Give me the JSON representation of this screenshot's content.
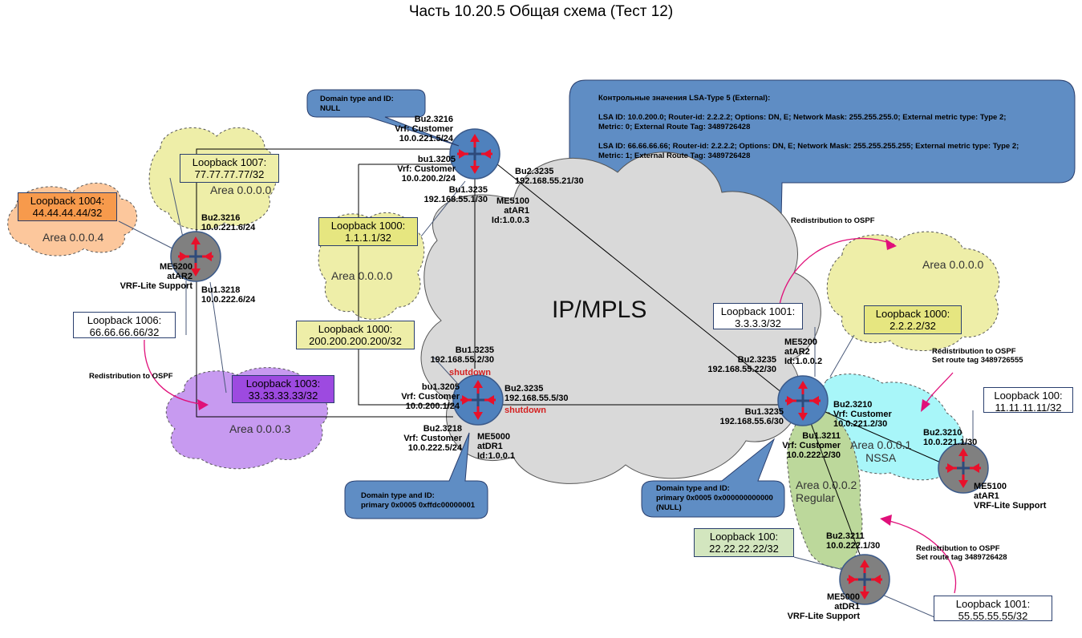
{
  "title": "Часть 10.20.5 Общая схема (Тест 12)",
  "core_label": "IP/MPLS",
  "colors": {
    "router": "#4f81bd",
    "router_vrf": "#808080",
    "core_cloud": "#d9d9d9",
    "callout": "#5f8dc4",
    "area_yellow": "#eeeea8",
    "area_orange": "#fcc79c",
    "area_purple": "#c79af0",
    "area_cyan": "#a8f6f9",
    "area_green": "#bcd89b",
    "link_pink": "#e0107a"
  },
  "callouts": {
    "top_left": "Domain type and ID:\nNULL",
    "lsa": "Контрольные значения LSA-Type 5 (External):\n\nLSA ID: 10.0.200.0; Router-id: 2.2.2.2; Options: DN, E; Network Mask: 255.255.255.0; External metric type: Type 2;\nMetric: 0; External Route Tag: 3489726428\n\nLSA ID: 66.66.66.66; Router-id: 2.2.2.2; Options: DN, E; Network Mask: 255.255.255.255; External metric type: Type 2;\nMetric: 1; External Route Tag: 3489726428",
    "bottom_mid": "Domain type and ID:\nprimary 0x0005 0xffdc00000001",
    "bottom_right": "Domain type and ID:\nprimary 0x0005 0x000000000000\n(NULL)"
  },
  "loopbacks": {
    "lb1004": "Loopback 1004:\n44.44.44.44/32",
    "lb1007": "Loopback 1007:\n77.77.77.77/32",
    "lb1000_a": "Loopback 1000:\n1.1.1.1/32",
    "lb1000_b": "Loopback 1000:\n200.200.200.200/32",
    "lb1006": "Loopback 1006:\n66.66.66.66/32",
    "lb1003": "Loopback 1003:\n33.33.33.33/32",
    "lb1001_a": "Loopback 1001:\n3.3.3.3/32",
    "lb1000_c": "Loopback 1000:\n2.2.2.2/32",
    "lb100_a": "Loopback 100:\n11.11.11.11/32",
    "lb100_b": "Loopback 100:\n22.22.22.22/32",
    "lb1001_b": "Loopback 1001:\n55.55.55.55/32"
  },
  "areas": {
    "a4": "Area 0.0.0.4",
    "a0_left": "Area 0.0.0.0",
    "a0_mid": "Area 0.0.0.0",
    "a3": "Area 0.0.0.3",
    "a0_right": "Area 0.0.0.0",
    "a1": "Area 0.0.0.1\nNSSA",
    "a2": "Area 0.0.0.2\nRegular"
  },
  "routers": {
    "ar1_top": "ME5100\natAR1\nId:1.0.0.3",
    "ar2_left": "ME5200\natAR2\nVRF-Lite Support",
    "dr1_mid": "ME5000\natDR1\nId:1.0.0.1",
    "ar2_right": "ME5200\natAR2\nId:1.0.0.2",
    "ar1_right": "ME5100\natAR1\nVRF-Lite Support",
    "dr1_bottom": "ME5000\natDR1\nVRF-Lite Support"
  },
  "labels": {
    "l_bu2_3216_top": "Bu2.3216\nVrf: Customer\n10.0.221.5/24",
    "l_bu1_3205_top": "bu1.3205\nVrf: Customer\n10.0.200.2/24",
    "l_bu1_3235_top": "Bu1.3235\n192.168.55.1/30",
    "l_bu2_3235_top": "Bu2.3235\n192.168.55.21/30",
    "l_bu2_3216_left": "Bu2.3216\n10.0.221.6/24",
    "l_bu1_3218_left": "Bu1.3218\n10.0.222.6/24",
    "l_bu1_3235_mid": "Bu1.3235\n192.168.55.2/30",
    "l_shutdown_1": "shutdown",
    "l_bu1_3205_mid": "bu1.3205\nVrf: Customer\n10.0.200.1/24",
    "l_bu2_3235_mid": "Bu2.3235\n192.168.55.5/30",
    "l_shutdown_2": "shutdown",
    "l_bu2_3218_mid": "Bu2.3218\nVrf: Customer\n10.0.222.5/24",
    "l_bu2_3235_right": "Bu2.3235\n192.168.55.22/30",
    "l_bu1_3235_right": "Bu1.3235\n192.168.55.6/30",
    "l_bu2_3210_right": "Bu2.3210\nVrf: Customer\n10.0.221.2/30",
    "l_bu1_3211_right": "Bu1.3211\nVrf: Customer\n10.0.222.2/30",
    "l_bu2_3210_ar1": "Bu2.3210\n10.0.221.1/30",
    "l_bu2_3211_dr1": "Bu2.3211\n10.0.222.1/30"
  },
  "redistribution": {
    "left": "Redistribution to OSPF",
    "top_right": "Redistribution to OSPF",
    "mid_right": "Redistribution to OSPF\nSet route tag 3489726555",
    "bottom_right": "Redistribution to OSPF\nSet route tag 3489726428"
  }
}
